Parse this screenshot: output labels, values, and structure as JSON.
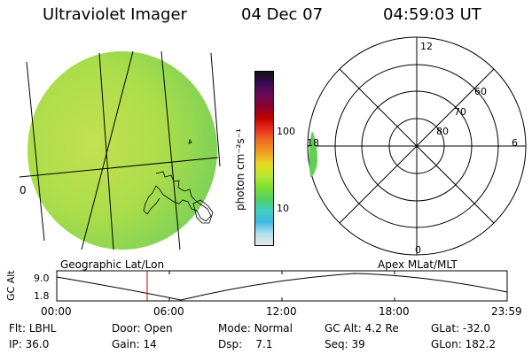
{
  "header": {
    "instrument": "Ultraviolet Imager",
    "date": "04 Dec 07",
    "time": "04:59:03 UT"
  },
  "geo_panel": {
    "label": "Geographic Lat/Lon",
    "lon_marker": "0"
  },
  "colorbar": {
    "unit_label": "photon cm⁻²s⁻¹",
    "ticks": [
      "100",
      "10"
    ],
    "colors": [
      "#111111",
      "#3a0a55",
      "#6a0a5a",
      "#8a0030",
      "#c00000",
      "#e83020",
      "#f07020",
      "#f0a020",
      "#e8d820",
      "#b8e830",
      "#80e030",
      "#50d060",
      "#40d0c0",
      "#40b8e0",
      "#b0e0f0",
      "#e6e6e6"
    ]
  },
  "polar_panel": {
    "label": "Apex MLat/MLT",
    "mlt_labels": {
      "top": "12",
      "left": "18",
      "right": "6",
      "bottom": "0"
    },
    "lat_labels": [
      "60",
      "70",
      "80"
    ]
  },
  "timeline": {
    "ylabel": "GC Alt",
    "y_ticks": [
      "9.0",
      "1.8"
    ],
    "x_ticks": [
      "00:00",
      "06:00",
      "12:00",
      "18:00",
      "23:59"
    ],
    "marker_time": "04:59"
  },
  "footer": {
    "filter_label": "Flt:",
    "filter_value": "LBHL",
    "ip_label": "IP:",
    "ip_value": "36.0",
    "door_label": "Door:",
    "door_value": "Open",
    "gain_label": "Gain:",
    "gain_value": "14",
    "mode_label": "Mode:",
    "mode_value": "Normal",
    "dsp_label": "Dsp:",
    "dsp_value": "7.1",
    "gcalt_label": "GC Alt:",
    "gcalt_value": "4.2 Re",
    "seq_label": "Seq:",
    "seq_value": "39",
    "glat_label": "GLat:",
    "glat_value": "-32.0",
    "glon_label": "GLon:",
    "glon_value": "182.2"
  }
}
